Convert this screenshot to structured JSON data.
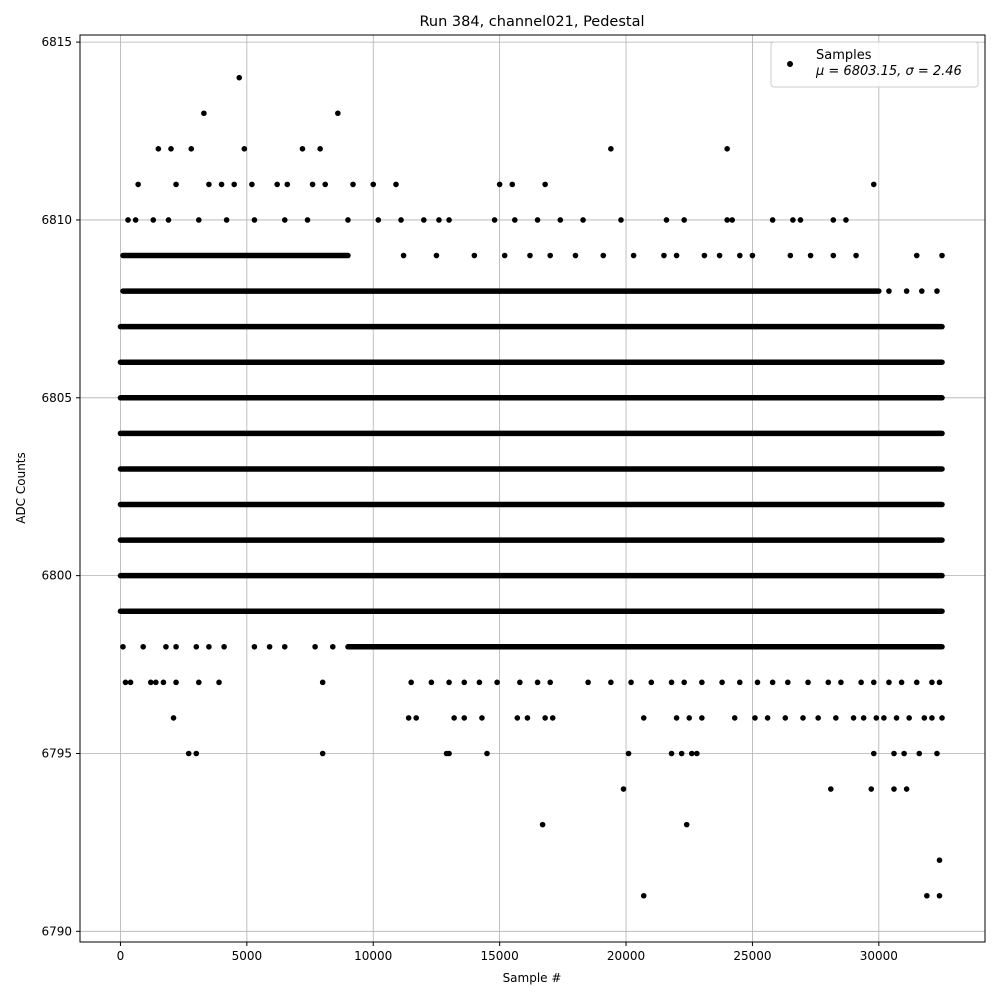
{
  "chart_data": {
    "type": "scatter",
    "title": "Run 384, channel021, Pedestal",
    "xlabel": "Sample #",
    "ylabel": "ADC Counts",
    "xlim": [
      -1600,
      34200
    ],
    "ylim": [
      6789.7,
      6815.2
    ],
    "xticks": [
      0,
      5000,
      10000,
      15000,
      20000,
      25000,
      30000
    ],
    "yticks": [
      6790,
      6795,
      6800,
      6805,
      6810,
      6815
    ],
    "grid": true,
    "legend_position": "top-right",
    "marker_color": "#000000",
    "legend": {
      "label": "Samples",
      "stats_line": "μ = 6803.15, σ = 2.46"
    },
    "series": [
      {
        "name": "Samples",
        "levels": [
          {
            "y": 6807,
            "segments": [
              [
                0,
                32500
              ]
            ]
          },
          {
            "y": 6806,
            "segments": [
              [
                0,
                32500
              ]
            ]
          },
          {
            "y": 6805,
            "segments": [
              [
                0,
                32500
              ]
            ]
          },
          {
            "y": 6804,
            "segments": [
              [
                0,
                32500
              ]
            ]
          },
          {
            "y": 6803,
            "segments": [
              [
                0,
                32500
              ]
            ]
          },
          {
            "y": 6802,
            "segments": [
              [
                0,
                32500
              ]
            ]
          },
          {
            "y": 6801,
            "segments": [
              [
                0,
                32500
              ]
            ]
          },
          {
            "y": 6800,
            "segments": [
              [
                0,
                32500
              ]
            ]
          },
          {
            "y": 6808,
            "segments": [
              [
                100,
                30000
              ]
            ]
          },
          {
            "y": 6799,
            "segments": [
              [
                0,
                32500
              ]
            ]
          },
          {
            "y": 6798,
            "segments": [
              [
                9000,
                32500
              ]
            ]
          },
          {
            "y": 6809,
            "segments": [
              [
                100,
                9000
              ]
            ]
          }
        ],
        "points": [
          [
            4700,
            6814
          ],
          [
            3300,
            6813
          ],
          [
            8600,
            6813
          ],
          [
            1500,
            6812
          ],
          [
            2000,
            6812
          ],
          [
            2800,
            6812
          ],
          [
            4900,
            6812
          ],
          [
            7200,
            6812
          ],
          [
            7900,
            6812
          ],
          [
            19400,
            6812
          ],
          [
            24000,
            6812
          ],
          [
            700,
            6811
          ],
          [
            2200,
            6811
          ],
          [
            3500,
            6811
          ],
          [
            4000,
            6811
          ],
          [
            4500,
            6811
          ],
          [
            5200,
            6811
          ],
          [
            6200,
            6811
          ],
          [
            6600,
            6811
          ],
          [
            7600,
            6811
          ],
          [
            8100,
            6811
          ],
          [
            9200,
            6811
          ],
          [
            10000,
            6811
          ],
          [
            10900,
            6811
          ],
          [
            15000,
            6811
          ],
          [
            15500,
            6811
          ],
          [
            16800,
            6811
          ],
          [
            29800,
            6811
          ],
          [
            300,
            6810
          ],
          [
            600,
            6810
          ],
          [
            1300,
            6810
          ],
          [
            1900,
            6810
          ],
          [
            3100,
            6810
          ],
          [
            4200,
            6810
          ],
          [
            5300,
            6810
          ],
          [
            6500,
            6810
          ],
          [
            7400,
            6810
          ],
          [
            9000,
            6810
          ],
          [
            10200,
            6810
          ],
          [
            11100,
            6810
          ],
          [
            12000,
            6810
          ],
          [
            12600,
            6810
          ],
          [
            13000,
            6810
          ],
          [
            14800,
            6810
          ],
          [
            15600,
            6810
          ],
          [
            16500,
            6810
          ],
          [
            17400,
            6810
          ],
          [
            18300,
            6810
          ],
          [
            19800,
            6810
          ],
          [
            21600,
            6810
          ],
          [
            22300,
            6810
          ],
          [
            24000,
            6810
          ],
          [
            24200,
            6810
          ],
          [
            25800,
            6810
          ],
          [
            26600,
            6810
          ],
          [
            26900,
            6810
          ],
          [
            28200,
            6810
          ],
          [
            28700,
            6810
          ],
          [
            11200,
            6809
          ],
          [
            12500,
            6809
          ],
          [
            14000,
            6809
          ],
          [
            15200,
            6809
          ],
          [
            16200,
            6809
          ],
          [
            17000,
            6809
          ],
          [
            18000,
            6809
          ],
          [
            19100,
            6809
          ],
          [
            20300,
            6809
          ],
          [
            21500,
            6809
          ],
          [
            22000,
            6809
          ],
          [
            23100,
            6809
          ],
          [
            23700,
            6809
          ],
          [
            24500,
            6809
          ],
          [
            25000,
            6809
          ],
          [
            26500,
            6809
          ],
          [
            27300,
            6809
          ],
          [
            28200,
            6809
          ],
          [
            29100,
            6809
          ],
          [
            31500,
            6809
          ],
          [
            32500,
            6809
          ],
          [
            30400,
            6808
          ],
          [
            31100,
            6808
          ],
          [
            31700,
            6808
          ],
          [
            32300,
            6808
          ],
          [
            100,
            6798
          ],
          [
            900,
            6798
          ],
          [
            1800,
            6798
          ],
          [
            2200,
            6798
          ],
          [
            3000,
            6798
          ],
          [
            3500,
            6798
          ],
          [
            4100,
            6798
          ],
          [
            5300,
            6798
          ],
          [
            5900,
            6798
          ],
          [
            6500,
            6798
          ],
          [
            7700,
            6798
          ],
          [
            8400,
            6798
          ],
          [
            200,
            6797
          ],
          [
            400,
            6797
          ],
          [
            1200,
            6797
          ],
          [
            1400,
            6797
          ],
          [
            1700,
            6797
          ],
          [
            2200,
            6797
          ],
          [
            3100,
            6797
          ],
          [
            3900,
            6797
          ],
          [
            8000,
            6797
          ],
          [
            11500,
            6797
          ],
          [
            12300,
            6797
          ],
          [
            13000,
            6797
          ],
          [
            13600,
            6797
          ],
          [
            14200,
            6797
          ],
          [
            14900,
            6797
          ],
          [
            15800,
            6797
          ],
          [
            16500,
            6797
          ],
          [
            17000,
            6797
          ],
          [
            18500,
            6797
          ],
          [
            19400,
            6797
          ],
          [
            20200,
            6797
          ],
          [
            21000,
            6797
          ],
          [
            21800,
            6797
          ],
          [
            22300,
            6797
          ],
          [
            23000,
            6797
          ],
          [
            23800,
            6797
          ],
          [
            24500,
            6797
          ],
          [
            25200,
            6797
          ],
          [
            25800,
            6797
          ],
          [
            26400,
            6797
          ],
          [
            27200,
            6797
          ],
          [
            28000,
            6797
          ],
          [
            28500,
            6797
          ],
          [
            29300,
            6797
          ],
          [
            29800,
            6797
          ],
          [
            30400,
            6797
          ],
          [
            30900,
            6797
          ],
          [
            31500,
            6797
          ],
          [
            32100,
            6797
          ],
          [
            32400,
            6797
          ],
          [
            2100,
            6796
          ],
          [
            11400,
            6796
          ],
          [
            11700,
            6796
          ],
          [
            13200,
            6796
          ],
          [
            13600,
            6796
          ],
          [
            14300,
            6796
          ],
          [
            15700,
            6796
          ],
          [
            16100,
            6796
          ],
          [
            16800,
            6796
          ],
          [
            17100,
            6796
          ],
          [
            20700,
            6796
          ],
          [
            22000,
            6796
          ],
          [
            22500,
            6796
          ],
          [
            23000,
            6796
          ],
          [
            24300,
            6796
          ],
          [
            25100,
            6796
          ],
          [
            25600,
            6796
          ],
          [
            26300,
            6796
          ],
          [
            27000,
            6796
          ],
          [
            27600,
            6796
          ],
          [
            28300,
            6796
          ],
          [
            29000,
            6796
          ],
          [
            29400,
            6796
          ],
          [
            29900,
            6796
          ],
          [
            30200,
            6796
          ],
          [
            30700,
            6796
          ],
          [
            31200,
            6796
          ],
          [
            31800,
            6796
          ],
          [
            32100,
            6796
          ],
          [
            32500,
            6796
          ],
          [
            2700,
            6795
          ],
          [
            3000,
            6795
          ],
          [
            8000,
            6795
          ],
          [
            12900,
            6795
          ],
          [
            13000,
            6795
          ],
          [
            14500,
            6795
          ],
          [
            20100,
            6795
          ],
          [
            21800,
            6795
          ],
          [
            22200,
            6795
          ],
          [
            22600,
            6795
          ],
          [
            22800,
            6795
          ],
          [
            29800,
            6795
          ],
          [
            30600,
            6795
          ],
          [
            31000,
            6795
          ],
          [
            31600,
            6795
          ],
          [
            32300,
            6795
          ],
          [
            19900,
            6794
          ],
          [
            28100,
            6794
          ],
          [
            29700,
            6794
          ],
          [
            30600,
            6794
          ],
          [
            31100,
            6794
          ],
          [
            16700,
            6793
          ],
          [
            22400,
            6793
          ],
          [
            32400,
            6792
          ],
          [
            20700,
            6791
          ],
          [
            31900,
            6791
          ],
          [
            32400,
            6791
          ]
        ]
      }
    ]
  }
}
